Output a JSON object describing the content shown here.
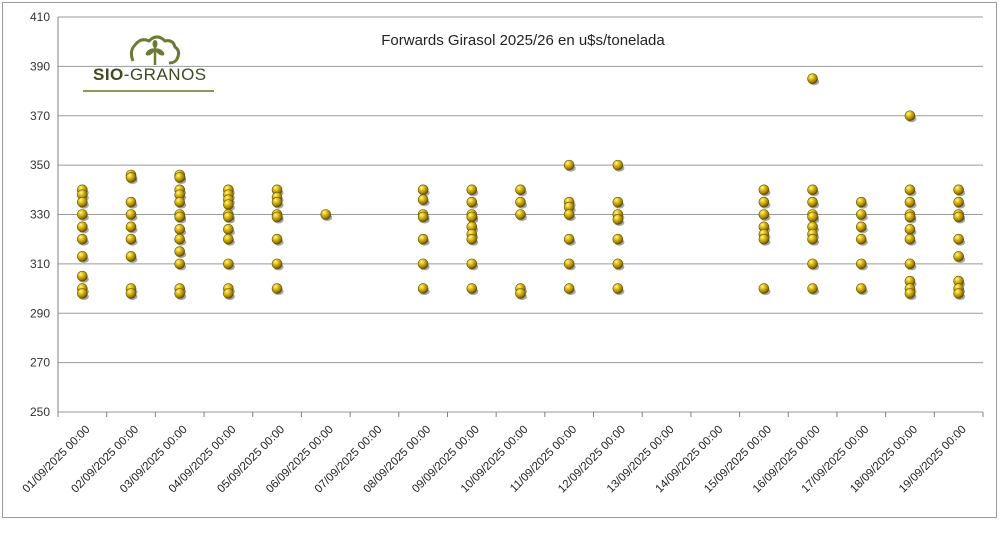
{
  "chart_data": {
    "type": "scatter",
    "title": "Forwards Girasol 2025/26 en u$s/tonelada",
    "xlabel": "",
    "ylabel": "",
    "ylim": [
      250,
      410
    ],
    "yticks": [
      250,
      270,
      290,
      310,
      330,
      350,
      370,
      390,
      410
    ],
    "grid": true,
    "categories": [
      "01/09/2025 00:00",
      "02/09/2025 00:00",
      "03/09/2025 00:00",
      "04/09/2025 00:00",
      "05/09/2025 00:00",
      "06/09/2025 00:00",
      "07/09/2025 00:00",
      "08/09/2025 00:00",
      "09/09/2025 00:00",
      "10/09/2025 00:00",
      "11/09/2025 00:00",
      "12/09/2025 00:00",
      "13/09/2025 00:00",
      "14/09/2025 00:00",
      "15/09/2025 00:00",
      "16/09/2025 00:00",
      "17/09/2025 00:00",
      "18/09/2025 00:00",
      "19/09/2025 00:00"
    ],
    "points": [
      [
        340,
        338,
        335,
        330,
        325,
        320,
        313,
        305,
        300,
        298
      ],
      [
        346,
        345,
        335,
        330,
        325,
        320,
        313,
        300,
        298
      ],
      [
        346,
        345,
        340,
        338,
        335,
        330,
        329,
        324,
        320,
        315,
        310,
        300,
        298
      ],
      [
        340,
        338,
        336,
        334,
        330,
        329,
        324,
        320,
        310,
        300,
        298
      ],
      [
        340,
        337,
        335,
        330,
        329,
        320,
        310,
        300
      ],
      [
        330
      ],
      [],
      [
        340,
        336,
        330,
        329,
        320,
        310,
        300
      ],
      [
        340,
        335,
        330,
        329,
        325,
        322,
        320,
        310,
        300
      ],
      [
        340,
        335,
        330,
        300,
        298
      ],
      [
        350,
        335,
        333,
        330,
        320,
        310,
        300
      ],
      [
        350,
        335,
        330,
        328,
        320,
        310,
        300
      ],
      [],
      [],
      [
        340,
        335,
        330,
        325,
        322,
        320,
        300
      ],
      [
        385,
        340,
        335,
        330,
        329,
        325,
        322,
        320,
        310,
        300
      ],
      [
        335,
        330,
        325,
        320,
        310,
        300
      ],
      [
        370,
        340,
        335,
        330,
        329,
        324,
        320,
        310,
        303,
        300,
        298
      ],
      [
        340,
        335,
        330,
        329,
        320,
        313,
        303,
        300,
        298
      ]
    ]
  },
  "logo": {
    "text_bold": "SIO",
    "text_light": "-GRANOS"
  }
}
